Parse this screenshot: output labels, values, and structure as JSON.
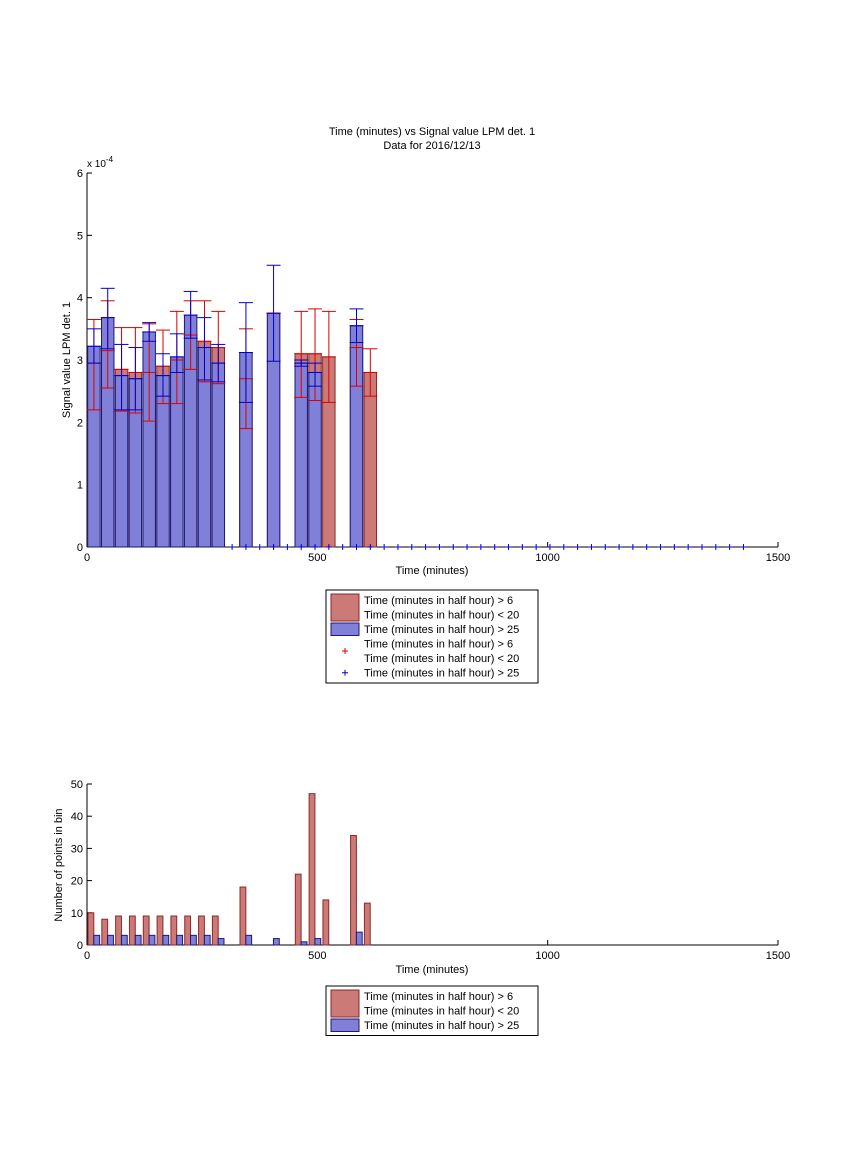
{
  "chart_data": [
    {
      "type": "bar",
      "title": "Time (minutes) vs Signal value LPM det. 1",
      "subtitle": "Data for 2016/12/13",
      "xlabel": "Time (minutes)",
      "ylabel": "Signal value LPM det. 1",
      "y_exponent_label": "x 10",
      "y_exponent_power": "-4",
      "xlim": [
        0,
        1500
      ],
      "ylim": [
        0,
        6
      ],
      "y_scale": 0.0001,
      "xticks": [
        0,
        500,
        1000,
        1500
      ],
      "yticks": [
        0,
        1,
        2,
        3,
        4,
        5,
        6
      ],
      "grid": false,
      "legend_position": "below",
      "colors": {
        "red": "#cc7a78",
        "blue": "#8080d8",
        "red_edge": "#8a2a28",
        "blue_edge": "#1a1a7a",
        "red_err": "#dd0000",
        "blue_err": "#0000cc"
      },
      "series": [
        {
          "name": "Time (minutes in half hour) > 6\nTime (minutes in half hour) < 20",
          "color": "red",
          "x": [
            15,
            45,
            75,
            105,
            135,
            165,
            195,
            225,
            255,
            285,
            345,
            405,
            465,
            495,
            525,
            585,
            615
          ],
          "values": [
            2.95,
            3.15,
            2.85,
            2.8,
            2.8,
            2.9,
            3.0,
            3.4,
            3.3,
            3.2,
            2.7,
            3.75,
            3.1,
            3.1,
            3.05,
            3.2,
            2.8
          ],
          "err_low": [
            2.2,
            2.55,
            2.18,
            2.15,
            2.02,
            2.3,
            2.3,
            2.85,
            2.65,
            2.62,
            1.9,
            3.75,
            2.4,
            2.35,
            2.32,
            2.58,
            2.42
          ],
          "err_high": [
            3.65,
            3.95,
            3.52,
            3.52,
            3.58,
            3.48,
            3.78,
            3.95,
            3.95,
            3.78,
            3.5,
            3.75,
            3.78,
            3.82,
            3.78,
            3.65,
            3.18
          ]
        },
        {
          "name": "Time (minutes in half hour) > 25",
          "color": "blue",
          "x": [
            15,
            45,
            75,
            105,
            135,
            165,
            195,
            225,
            255,
            285,
            345,
            405,
            465,
            495,
            525,
            585,
            615
          ],
          "values": [
            3.22,
            3.68,
            2.75,
            2.7,
            3.45,
            2.75,
            3.05,
            3.72,
            3.2,
            2.95,
            3.12,
            3.75,
            2.95,
            2.8,
            null,
            3.55,
            null
          ],
          "err_low": [
            2.95,
            3.18,
            2.2,
            2.2,
            3.3,
            2.42,
            2.8,
            3.35,
            2.68,
            2.65,
            2.32,
            2.98,
            2.9,
            2.58,
            null,
            3.28,
            null
          ],
          "err_high": [
            3.5,
            4.15,
            3.25,
            3.2,
            3.6,
            3.1,
            3.42,
            4.1,
            3.68,
            3.25,
            3.92,
            4.52,
            3.0,
            2.95,
            null,
            3.82,
            null
          ]
        }
      ],
      "scatter_series": [
        {
          "name": "Time (minutes in half hour) > 6\nTime (minutes in half hour) < 20",
          "color": "red",
          "marker": "+",
          "x": [
            405
          ],
          "y": [
            0
          ]
        },
        {
          "name": "Time (minutes in half hour) > 25",
          "color": "blue",
          "marker": "+",
          "x": [
            315,
            345,
            375,
            405,
            435,
            465,
            495,
            525,
            555,
            585,
            615,
            645,
            675,
            705,
            735,
            765,
            795,
            825,
            855,
            885,
            915,
            945,
            975,
            1005,
            1035,
            1065,
            1095,
            1125,
            1155,
            1185,
            1215,
            1245,
            1275,
            1305,
            1335,
            1365,
            1395,
            1425
          ],
          "y": [
            0,
            0,
            0,
            0,
            0,
            0,
            0,
            0,
            0,
            0,
            0,
            0,
            0,
            0,
            0,
            0,
            0,
            0,
            0,
            0,
            0,
            0,
            0,
            0,
            0,
            0,
            0,
            0,
            0,
            0,
            0,
            0,
            0,
            0,
            0,
            0,
            0,
            0
          ]
        }
      ],
      "legend": [
        {
          "kind": "bar",
          "color": "red",
          "lines": [
            "Time (minutes in half hour) > 6",
            "Time (minutes in half hour) < 20"
          ]
        },
        {
          "kind": "bar",
          "color": "blue",
          "lines": [
            "Time (minutes in half hour) > 25"
          ]
        },
        {
          "kind": "marker",
          "color": "red",
          "lines": [
            "Time (minutes in half hour) > 6",
            "Time (minutes in half hour) < 20"
          ]
        },
        {
          "kind": "marker",
          "color": "blue",
          "lines": [
            "Time (minutes in half hour) > 25"
          ]
        }
      ]
    },
    {
      "type": "bar",
      "title": "",
      "xlabel": "Time (minutes)",
      "ylabel": "Number of points in bin",
      "xlim": [
        0,
        1500
      ],
      "ylim": [
        0,
        50
      ],
      "xticks": [
        0,
        500,
        1000,
        1500
      ],
      "yticks": [
        0,
        10,
        20,
        30,
        40,
        50
      ],
      "grid": false,
      "legend_position": "below",
      "series": [
        {
          "name": "Time (minutes in half hour) > 6\nTime (minutes in half hour) < 20",
          "color": "red",
          "x": [
            15,
            45,
            75,
            105,
            135,
            165,
            195,
            225,
            255,
            285,
            345,
            405,
            465,
            495,
            525,
            585,
            615
          ],
          "values": [
            10,
            8,
            9,
            9,
            9,
            9,
            9,
            9,
            9,
            9,
            18,
            0,
            22,
            47,
            14,
            34,
            13
          ]
        },
        {
          "name": "Time (minutes in half hour) > 25",
          "color": "blue",
          "x": [
            15,
            45,
            75,
            105,
            135,
            165,
            195,
            225,
            255,
            285,
            345,
            405,
            465,
            495,
            525,
            585,
            615
          ],
          "values": [
            3,
            3,
            3,
            3,
            3,
            3,
            3,
            3,
            3,
            2,
            3,
            2,
            1,
            2,
            0,
            4,
            0
          ]
        }
      ],
      "legend": [
        {
          "kind": "bar",
          "color": "red",
          "lines": [
            "Time (minutes in half hour) > 6",
            "Time (minutes in half hour) < 20"
          ]
        },
        {
          "kind": "bar",
          "color": "blue",
          "lines": [
            "Time (minutes in half hour) > 25"
          ]
        }
      ]
    }
  ]
}
